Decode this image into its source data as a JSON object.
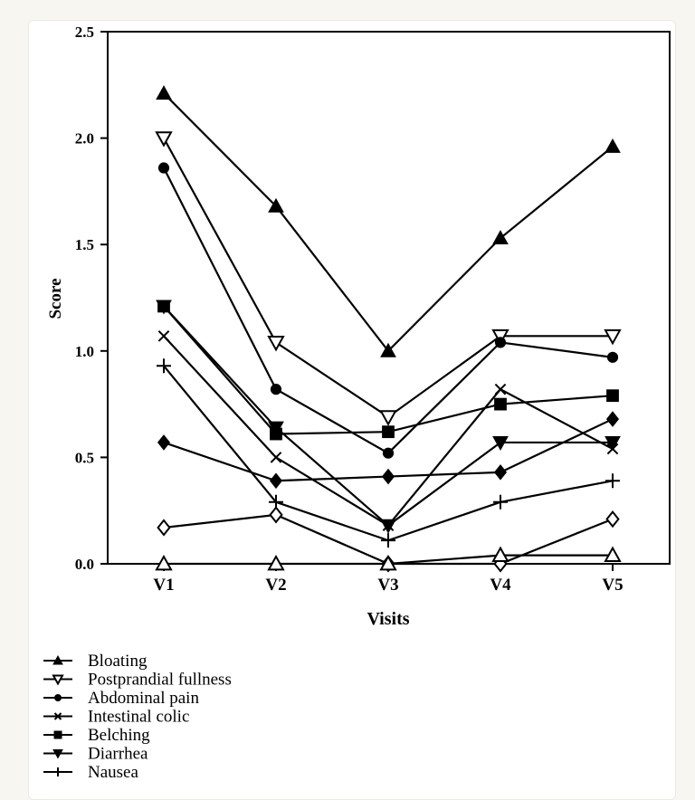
{
  "chart_data": {
    "type": "line",
    "xlabel": "Visits",
    "ylabel": "Score",
    "categories": [
      "V1",
      "V2",
      "V3",
      "V4",
      "V5"
    ],
    "ylim": [
      0,
      2.5
    ],
    "yticks": [
      "0.0",
      "0.5",
      "1.0",
      "1.5",
      "2.0",
      "2.5"
    ],
    "grid": false,
    "legend": "bottom-left",
    "series": [
      {
        "name": "Bloating",
        "marker": "triangle-filled",
        "values": [
          2.21,
          1.68,
          1.0,
          1.53,
          1.96
        ]
      },
      {
        "name": "Postprandial fullness",
        "marker": "triangle-down-open",
        "values": [
          2.0,
          1.04,
          0.69,
          1.07,
          1.07
        ]
      },
      {
        "name": "Abdominal pain",
        "marker": "circle-filled",
        "values": [
          1.86,
          0.82,
          0.52,
          1.04,
          0.97
        ]
      },
      {
        "name": "Intestinal colic",
        "marker": "x",
        "values": [
          1.07,
          0.5,
          0.18,
          0.82,
          0.54
        ]
      },
      {
        "name": "Belching",
        "marker": "square-filled",
        "values": [
          1.21,
          0.61,
          0.62,
          0.75,
          0.79
        ]
      },
      {
        "name": "Diarrhea",
        "marker": "triangle-down-filled",
        "values": [
          1.21,
          0.64,
          0.18,
          0.57,
          0.57
        ]
      },
      {
        "name": "Nausea",
        "marker": "plus",
        "values": [
          0.93,
          0.29,
          0.11,
          0.29,
          0.39
        ]
      },
      {
        "marker": "diamond-filled",
        "values": [
          0.57,
          0.39,
          0.41,
          0.43,
          0.68
        ]
      },
      {
        "marker": "diamond-open",
        "values": [
          0.17,
          0.23,
          0.0,
          0.0,
          0.21
        ]
      },
      {
        "marker": "triangle-open",
        "values": [
          0.0,
          0.0,
          0.0,
          0.04,
          0.04
        ]
      }
    ]
  }
}
